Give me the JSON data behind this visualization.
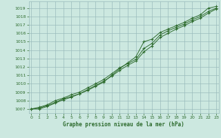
{
  "title": "Graphe pression niveau de la mer (hPa)",
  "x_hours": [
    0,
    1,
    2,
    3,
    4,
    5,
    6,
    7,
    8,
    9,
    10,
    11,
    12,
    13,
    14,
    15,
    16,
    17,
    18,
    19,
    20,
    21,
    22,
    23
  ],
  "line1": [
    1007.0,
    1007.1,
    1007.4,
    1007.8,
    1008.2,
    1008.5,
    1008.8,
    1009.2,
    1009.7,
    1010.2,
    1011.0,
    1011.8,
    1012.5,
    1013.2,
    1015.0,
    1015.3,
    1016.1,
    1016.5,
    1016.9,
    1017.3,
    1017.8,
    1018.2,
    1019.0,
    1019.2
  ],
  "line2": [
    1007.0,
    1007.2,
    1007.5,
    1008.0,
    1008.3,
    1008.7,
    1009.0,
    1009.5,
    1010.0,
    1010.5,
    1011.2,
    1011.9,
    1012.4,
    1012.9,
    1014.2,
    1014.8,
    1015.8,
    1016.3,
    1016.7,
    1017.1,
    1017.6,
    1018.0,
    1018.6,
    1019.0
  ],
  "line3": [
    1007.0,
    1007.0,
    1007.3,
    1007.7,
    1008.1,
    1008.4,
    1008.8,
    1009.3,
    1009.8,
    1010.3,
    1010.9,
    1011.6,
    1012.2,
    1012.7,
    1013.8,
    1014.5,
    1015.5,
    1016.0,
    1016.5,
    1016.9,
    1017.4,
    1017.8,
    1018.4,
    1018.9
  ],
  "line_color": "#2d6b2d",
  "bg_color": "#cce8e0",
  "grid_color": "#99bbbb",
  "ylim": [
    1006.5,
    1019.8
  ],
  "xlim": [
    -0.3,
    23.3
  ],
  "yticks": [
    1007,
    1008,
    1009,
    1010,
    1011,
    1012,
    1013,
    1014,
    1015,
    1016,
    1017,
    1018,
    1019
  ],
  "xticks": [
    0,
    1,
    2,
    3,
    4,
    5,
    6,
    7,
    8,
    9,
    10,
    11,
    12,
    13,
    14,
    15,
    16,
    17,
    18,
    19,
    20,
    21,
    22,
    23
  ]
}
